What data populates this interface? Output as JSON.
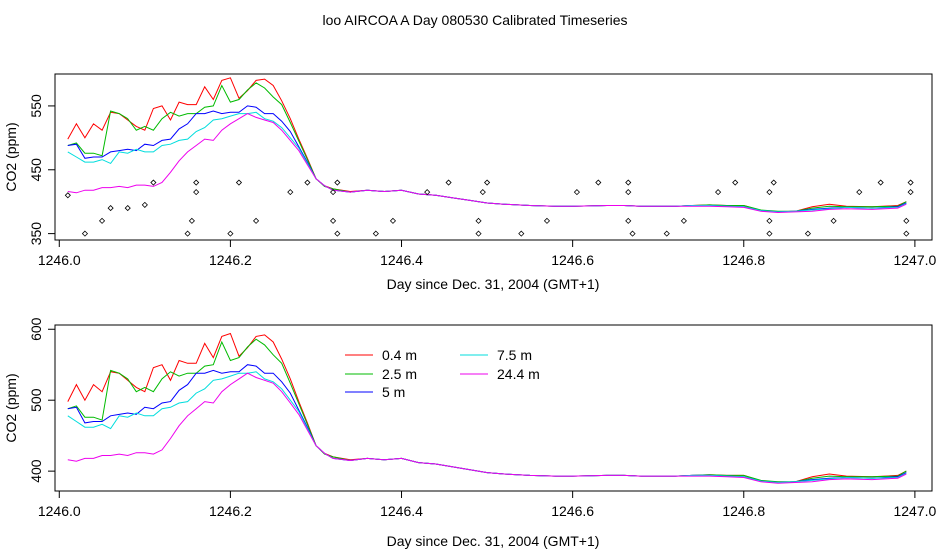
{
  "title": "loo AIRCOA A  Day 080530  Calibrated Timeseries",
  "chart_data": [
    {
      "type": "line",
      "panel": "top",
      "xlabel": "Day since Dec. 31, 2004 (GMT+1)",
      "ylabel": "CO2 (ppm)",
      "xlim": [
        1245.995,
        1247.02
      ],
      "ylim": [
        340,
        600
      ],
      "xticks": [
        1246.0,
        1246.2,
        1246.4,
        1246.6,
        1246.8,
        1247.0
      ],
      "xtick_labels": [
        "1246.0",
        "1246.2",
        "1246.4",
        "1246.6",
        "1246.8",
        "1247.0"
      ],
      "yticks": [
        350,
        450,
        550
      ],
      "ytick_labels": [
        "350",
        "450",
        "550"
      ],
      "grid": false,
      "series": [
        {
          "name": "0.4 m",
          "color": "#ff0000",
          "x": [
            1246.01,
            1246.02,
            1246.03,
            1246.04,
            1246.05,
            1246.06,
            1246.07,
            1246.08,
            1246.09,
            1246.1,
            1246.11,
            1246.12,
            1246.13,
            1246.14,
            1246.15,
            1246.16,
            1246.17,
            1246.18,
            1246.19,
            1246.2,
            1246.21,
            1246.22,
            1246.23,
            1246.24,
            1246.25,
            1246.26,
            1246.27,
            1246.28,
            1246.29,
            1246.3,
            1246.31,
            1246.32,
            1246.34,
            1246.36,
            1246.38,
            1246.4,
            1246.42,
            1246.44,
            1246.46,
            1246.48,
            1246.5,
            1246.52,
            1246.55,
            1246.58,
            1246.6,
            1246.64,
            1246.66,
            1246.68,
            1246.7,
            1246.72,
            1246.74,
            1246.76,
            1246.78,
            1246.8,
            1246.82,
            1246.84,
            1246.86,
            1246.88,
            1246.9,
            1246.92,
            1246.95,
            1246.98,
            1246.99
          ],
          "y": [
            498,
            522,
            500,
            522,
            512,
            540,
            538,
            528,
            518,
            512,
            546,
            550,
            528,
            556,
            552,
            552,
            580,
            560,
            590,
            594,
            562,
            574,
            590,
            592,
            582,
            558,
            530,
            498,
            468,
            436,
            425,
            420,
            416,
            418,
            416,
            418,
            412,
            410,
            406,
            402,
            398,
            396,
            394,
            393,
            393,
            394,
            394,
            393,
            393,
            393,
            394,
            395,
            394,
            394,
            386,
            384,
            385,
            392,
            396,
            393,
            392,
            394,
            400
          ]
        },
        {
          "name": "2.5 m",
          "color": "#00bb00",
          "x": [
            1246.01,
            1246.02,
            1246.03,
            1246.04,
            1246.05,
            1246.06,
            1246.07,
            1246.08,
            1246.09,
            1246.1,
            1246.11,
            1246.12,
            1246.13,
            1246.14,
            1246.15,
            1246.16,
            1246.17,
            1246.18,
            1246.19,
            1246.2,
            1246.21,
            1246.22,
            1246.23,
            1246.24,
            1246.25,
            1246.26,
            1246.27,
            1246.28,
            1246.29,
            1246.3,
            1246.31,
            1246.32,
            1246.34,
            1246.36,
            1246.38,
            1246.4,
            1246.42,
            1246.44,
            1246.46,
            1246.48,
            1246.5,
            1246.52,
            1246.55,
            1246.58,
            1246.6,
            1246.64,
            1246.66,
            1246.68,
            1246.7,
            1246.72,
            1246.74,
            1246.76,
            1246.78,
            1246.8,
            1246.82,
            1246.84,
            1246.86,
            1246.88,
            1246.9,
            1246.92,
            1246.95,
            1246.98,
            1246.99
          ],
          "y": [
            488,
            492,
            476,
            476,
            472,
            542,
            538,
            530,
            512,
            518,
            512,
            530,
            540,
            534,
            538,
            538,
            548,
            550,
            582,
            556,
            560,
            575,
            586,
            578,
            564,
            552,
            524,
            495,
            466,
            436,
            424,
            420,
            415,
            418,
            416,
            418,
            412,
            410,
            406,
            402,
            398,
            396,
            394,
            393,
            393,
            394,
            394,
            393,
            393,
            393,
            394,
            395,
            394,
            394,
            387,
            385,
            385,
            390,
            393,
            392,
            392,
            393,
            400
          ]
        },
        {
          "name": "5 m",
          "color": "#0000ff",
          "x": [
            1246.01,
            1246.02,
            1246.03,
            1246.04,
            1246.05,
            1246.06,
            1246.07,
            1246.08,
            1246.09,
            1246.1,
            1246.11,
            1246.12,
            1246.13,
            1246.14,
            1246.15,
            1246.16,
            1246.17,
            1246.18,
            1246.19,
            1246.2,
            1246.21,
            1246.22,
            1246.23,
            1246.24,
            1246.25,
            1246.26,
            1246.27,
            1246.28,
            1246.29,
            1246.3,
            1246.31,
            1246.32,
            1246.34,
            1246.36,
            1246.38,
            1246.4,
            1246.42,
            1246.44,
            1246.46,
            1246.48,
            1246.5,
            1246.52,
            1246.55,
            1246.58,
            1246.6,
            1246.64,
            1246.66,
            1246.68,
            1246.7,
            1246.72,
            1246.74,
            1246.76,
            1246.78,
            1246.8,
            1246.82,
            1246.84,
            1246.86,
            1246.88,
            1246.9,
            1246.92,
            1246.95,
            1246.98,
            1246.99
          ],
          "y": [
            488,
            490,
            468,
            470,
            470,
            478,
            480,
            482,
            480,
            490,
            488,
            496,
            498,
            514,
            522,
            538,
            538,
            542,
            538,
            540,
            540,
            550,
            548,
            538,
            538,
            526,
            510,
            486,
            462,
            436,
            425,
            418,
            415,
            418,
            416,
            418,
            412,
            410,
            406,
            402,
            398,
            396,
            394,
            393,
            393,
            394,
            394,
            393,
            393,
            393,
            394,
            394,
            393,
            392,
            386,
            384,
            385,
            388,
            390,
            391,
            390,
            392,
            398
          ]
        },
        {
          "name": "7.5 m",
          "color": "#00dddd",
          "x": [
            1246.01,
            1246.02,
            1246.03,
            1246.04,
            1246.05,
            1246.06,
            1246.07,
            1246.08,
            1246.09,
            1246.1,
            1246.11,
            1246.12,
            1246.13,
            1246.14,
            1246.15,
            1246.16,
            1246.17,
            1246.18,
            1246.19,
            1246.2,
            1246.21,
            1246.22,
            1246.23,
            1246.24,
            1246.25,
            1246.26,
            1246.27,
            1246.28,
            1246.29,
            1246.3,
            1246.31,
            1246.32,
            1246.34,
            1246.36,
            1246.38,
            1246.4,
            1246.42,
            1246.44,
            1246.46,
            1246.48,
            1246.5,
            1246.52,
            1246.55,
            1246.58,
            1246.6,
            1246.64,
            1246.66,
            1246.68,
            1246.7,
            1246.72,
            1246.74,
            1246.76,
            1246.78,
            1246.8,
            1246.82,
            1246.84,
            1246.86,
            1246.88,
            1246.9,
            1246.92,
            1246.95,
            1246.98,
            1246.99
          ],
          "y": [
            478,
            470,
            462,
            462,
            466,
            460,
            478,
            476,
            482,
            478,
            478,
            488,
            490,
            496,
            498,
            510,
            516,
            528,
            530,
            534,
            538,
            538,
            540,
            530,
            526,
            516,
            500,
            484,
            460,
            436,
            425,
            418,
            415,
            418,
            416,
            418,
            412,
            410,
            406,
            402,
            398,
            396,
            394,
            393,
            393,
            394,
            394,
            393,
            393,
            393,
            394,
            394,
            393,
            392,
            386,
            384,
            385,
            387,
            389,
            391,
            390,
            391,
            397
          ]
        },
        {
          "name": "24.4 m",
          "color": "#ee00ee",
          "x": [
            1246.01,
            1246.02,
            1246.03,
            1246.04,
            1246.05,
            1246.06,
            1246.07,
            1246.08,
            1246.09,
            1246.1,
            1246.11,
            1246.12,
            1246.13,
            1246.14,
            1246.15,
            1246.16,
            1246.17,
            1246.18,
            1246.19,
            1246.2,
            1246.21,
            1246.22,
            1246.23,
            1246.24,
            1246.25,
            1246.26,
            1246.27,
            1246.28,
            1246.29,
            1246.3,
            1246.31,
            1246.32,
            1246.34,
            1246.36,
            1246.38,
            1246.4,
            1246.42,
            1246.44,
            1246.46,
            1246.48,
            1246.5,
            1246.52,
            1246.55,
            1246.58,
            1246.6,
            1246.64,
            1246.66,
            1246.68,
            1246.7,
            1246.72,
            1246.74,
            1246.76,
            1246.78,
            1246.8,
            1246.82,
            1246.84,
            1246.86,
            1246.88,
            1246.9,
            1246.92,
            1246.95,
            1246.98,
            1246.99
          ],
          "y": [
            416,
            414,
            418,
            418,
            422,
            422,
            424,
            422,
            426,
            426,
            424,
            430,
            446,
            464,
            478,
            488,
            498,
            496,
            512,
            522,
            530,
            538,
            532,
            528,
            524,
            512,
            496,
            480,
            458,
            436,
            425,
            418,
            415,
            418,
            416,
            418,
            412,
            410,
            406,
            402,
            398,
            396,
            394,
            393,
            393,
            394,
            394,
            393,
            393,
            393,
            393,
            393,
            392,
            391,
            385,
            383,
            384,
            385,
            388,
            389,
            388,
            390,
            396
          ]
        }
      ],
      "flag_points": {
        "x": [
          1246.01,
          1246.03,
          1246.05,
          1246.06,
          1246.08,
          1246.1,
          1246.11,
          1246.15,
          1246.155,
          1246.16,
          1246.16,
          1246.2,
          1246.21,
          1246.23,
          1246.27,
          1246.29,
          1246.32,
          1246.32,
          1246.325,
          1246.325,
          1246.37,
          1246.39,
          1246.43,
          1246.455,
          1246.49,
          1246.49,
          1246.495,
          1246.5,
          1246.54,
          1246.57,
          1246.605,
          1246.63,
          1246.665,
          1246.665,
          1246.665,
          1246.67,
          1246.71,
          1246.73,
          1246.77,
          1246.79,
          1246.83,
          1246.83,
          1246.83,
          1246.835,
          1246.875,
          1246.905,
          1246.935,
          1246.96,
          1246.99,
          1246.99,
          1246.995,
          1246.995
        ],
        "y": [
          410,
          350,
          370,
          390,
          390,
          395,
          430,
          350,
          370,
          415,
          430,
          350,
          430,
          370,
          415,
          430,
          370,
          415,
          430,
          350,
          350,
          370,
          415,
          430,
          350,
          370,
          415,
          430,
          350,
          370,
          415,
          430,
          370,
          415,
          430,
          350,
          350,
          370,
          415,
          430,
          350,
          370,
          415,
          430,
          350,
          370,
          415,
          430,
          350,
          370,
          415,
          430
        ]
      }
    },
    {
      "type": "line",
      "panel": "bottom",
      "xlabel": "Day since Dec. 31, 2004 (GMT+1)",
      "ylabel": "CO2 (ppm)",
      "xlim": [
        1245.995,
        1247.02
      ],
      "ylim": [
        372,
        606
      ],
      "xticks": [
        1246.0,
        1246.2,
        1246.4,
        1246.6,
        1246.8,
        1247.0
      ],
      "xtick_labels": [
        "1246.0",
        "1246.2",
        "1246.4",
        "1246.6",
        "1246.8",
        "1247.0"
      ],
      "yticks": [
        400,
        500,
        600
      ],
      "ytick_labels": [
        "400",
        "500",
        "600"
      ],
      "grid": false,
      "legend": {
        "placement": "top-center",
        "entries": [
          {
            "label": "0.4 m",
            "color": "#ff0000"
          },
          {
            "label": "2.5 m",
            "color": "#00bb00"
          },
          {
            "label": "5 m",
            "color": "#0000ff"
          },
          {
            "label": "7.5 m",
            "color": "#00dddd"
          },
          {
            "label": "24.4 m",
            "color": "#ee00ee"
          }
        ]
      },
      "same_series_as_top": true
    }
  ]
}
